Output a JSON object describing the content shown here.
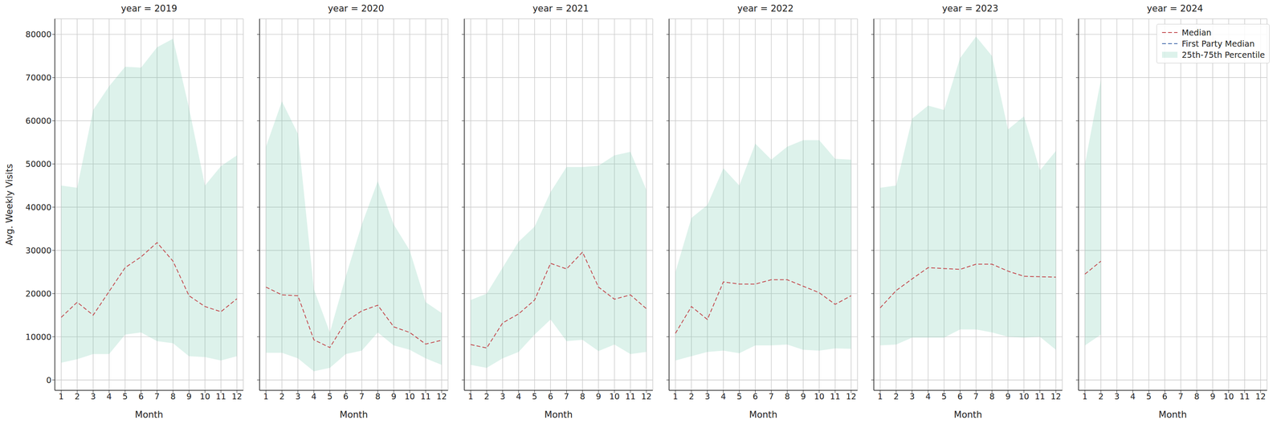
{
  "chart_data": [
    {
      "type": "line",
      "title": "year = 2019",
      "x_label": "Month",
      "y_label": "Avg. Weekly Visits",
      "x": [
        1,
        2,
        3,
        4,
        5,
        6,
        7,
        8,
        9,
        10,
        11,
        12
      ],
      "xlim": [
        0.6,
        12.4
      ],
      "xticks": [
        1,
        2,
        3,
        4,
        5,
        6,
        7,
        8,
        9,
        10,
        11,
        12
      ],
      "ylim": [
        -2400,
        83600
      ],
      "yticks": [
        0,
        10000,
        20000,
        30000,
        40000,
        50000,
        60000,
        70000,
        80000
      ],
      "grid": true,
      "series": [
        {
          "name": "Median",
          "type": "line",
          "color": "#c44e52",
          "line_style": "dashed",
          "values": [
            14500,
            18000,
            15000,
            20500,
            26000,
            28500,
            31800,
            27500,
            19500,
            17000,
            15800,
            18800
          ]
        },
        {
          "name": "First Party Median",
          "type": "line",
          "color": "#4c72b0",
          "line_style": "dashed",
          "values": [
            null,
            null,
            null,
            null,
            null,
            null,
            null,
            null,
            null,
            null,
            null,
            null
          ]
        },
        {
          "name": "25th-75th Percentile",
          "type": "area",
          "color": "#66c2a5",
          "low": [
            4000,
            4800,
            6000,
            6000,
            10500,
            11000,
            9000,
            8500,
            5500,
            5300,
            4500,
            5500
          ],
          "high": [
            45000,
            44500,
            62500,
            68000,
            72500,
            72300,
            77000,
            79000,
            63000,
            45000,
            49500,
            52000
          ]
        }
      ]
    },
    {
      "type": "line",
      "title": "year = 2020",
      "x_label": "Month",
      "tick_labels": "x",
      "x": [
        1,
        2,
        3,
        4,
        5,
        6,
        7,
        8,
        9,
        10,
        11,
        12
      ],
      "xlim": [
        0.6,
        12.4
      ],
      "xticks": [
        1,
        2,
        3,
        4,
        5,
        6,
        7,
        8,
        9,
        10,
        11,
        12
      ],
      "ylim": [
        -2400,
        83600
      ],
      "yticks": [
        0,
        10000,
        20000,
        30000,
        40000,
        50000,
        60000,
        70000,
        80000
      ],
      "grid": true,
      "series": [
        {
          "name": "Median",
          "type": "line",
          "color": "#c44e52",
          "line_style": "dashed",
          "values": [
            21500,
            19700,
            19500,
            9300,
            7500,
            13500,
            16000,
            17300,
            12300,
            11000,
            8300,
            9200
          ]
        },
        {
          "name": "First Party Median",
          "type": "line",
          "color": "#4c72b0",
          "line_style": "dashed",
          "values": [
            null,
            null,
            null,
            null,
            null,
            null,
            null,
            null,
            null,
            null,
            null,
            null
          ]
        },
        {
          "name": "25th-75th Percentile",
          "type": "area",
          "color": "#66c2a5",
          "low": [
            6300,
            6300,
            5000,
            2000,
            2800,
            6000,
            6800,
            11000,
            8000,
            7000,
            5000,
            3500
          ],
          "high": [
            54000,
            64500,
            57000,
            21000,
            11000,
            24000,
            36000,
            46000,
            36000,
            30000,
            18000,
            15500
          ]
        }
      ]
    },
    {
      "type": "line",
      "title": "year = 2021",
      "x_label": "Month",
      "tick_labels": "x",
      "x": [
        1,
        2,
        3,
        4,
        5,
        6,
        7,
        8,
        9,
        10,
        11,
        12
      ],
      "xlim": [
        0.6,
        12.4
      ],
      "xticks": [
        1,
        2,
        3,
        4,
        5,
        6,
        7,
        8,
        9,
        10,
        11,
        12
      ],
      "ylim": [
        -2400,
        83600
      ],
      "yticks": [
        0,
        10000,
        20000,
        30000,
        40000,
        50000,
        60000,
        70000,
        80000
      ],
      "grid": true,
      "series": [
        {
          "name": "Median",
          "type": "line",
          "color": "#c44e52",
          "line_style": "dashed",
          "values": [
            8200,
            7400,
            13200,
            15300,
            18500,
            27000,
            25700,
            29600,
            21500,
            18700,
            19700,
            16500
          ]
        },
        {
          "name": "First Party Median",
          "type": "line",
          "color": "#4c72b0",
          "line_style": "dashed",
          "values": [
            null,
            null,
            null,
            null,
            null,
            null,
            null,
            null,
            null,
            null,
            null,
            null
          ]
        },
        {
          "name": "25th-75th Percentile",
          "type": "area",
          "color": "#66c2a5",
          "low": [
            3500,
            2800,
            5000,
            6500,
            10500,
            14000,
            9000,
            9300,
            6700,
            8200,
            6000,
            6500
          ],
          "high": [
            18500,
            20000,
            26000,
            32000,
            35500,
            43500,
            49300,
            49300,
            49600,
            52000,
            52800,
            44000
          ]
        }
      ]
    },
    {
      "type": "line",
      "title": "year = 2022",
      "x_label": "Month",
      "tick_labels": "x",
      "x": [
        1,
        2,
        3,
        4,
        5,
        6,
        7,
        8,
        9,
        10,
        11,
        12
      ],
      "xlim": [
        0.6,
        12.4
      ],
      "xticks": [
        1,
        2,
        3,
        4,
        5,
        6,
        7,
        8,
        9,
        10,
        11,
        12
      ],
      "ylim": [
        -2400,
        83600
      ],
      "yticks": [
        0,
        10000,
        20000,
        30000,
        40000,
        50000,
        60000,
        70000,
        80000
      ],
      "grid": true,
      "series": [
        {
          "name": "Median",
          "type": "line",
          "color": "#c44e52",
          "line_style": "dashed",
          "values": [
            10800,
            17000,
            14000,
            22700,
            22200,
            22200,
            23200,
            23200,
            21700,
            20200,
            17500,
            19500
          ]
        },
        {
          "name": "First Party Median",
          "type": "line",
          "color": "#4c72b0",
          "line_style": "dashed",
          "values": [
            null,
            null,
            null,
            null,
            null,
            null,
            null,
            null,
            null,
            null,
            null,
            null
          ]
        },
        {
          "name": "25th-75th Percentile",
          "type": "area",
          "color": "#66c2a5",
          "low": [
            4500,
            5500,
            6500,
            6800,
            6200,
            8000,
            8000,
            8200,
            7000,
            6800,
            7300,
            7200
          ],
          "high": [
            25000,
            37500,
            40500,
            49000,
            45000,
            54700,
            51000,
            54000,
            55500,
            55500,
            51200,
            51000
          ]
        }
      ]
    },
    {
      "type": "line",
      "title": "year = 2023",
      "x_label": "Month",
      "tick_labels": "x",
      "x": [
        1,
        2,
        3,
        4,
        5,
        6,
        7,
        8,
        9,
        10,
        11,
        12
      ],
      "xlim": [
        0.6,
        12.4
      ],
      "xticks": [
        1,
        2,
        3,
        4,
        5,
        6,
        7,
        8,
        9,
        10,
        11,
        12
      ],
      "ylim": [
        -2400,
        83600
      ],
      "yticks": [
        0,
        10000,
        20000,
        30000,
        40000,
        50000,
        60000,
        70000,
        80000
      ],
      "grid": true,
      "series": [
        {
          "name": "Median",
          "type": "line",
          "color": "#c44e52",
          "line_style": "dashed",
          "values": [
            16700,
            20700,
            23400,
            26000,
            25800,
            25600,
            26800,
            26800,
            25200,
            24000,
            23900,
            23800
          ]
        },
        {
          "name": "First Party Median",
          "type": "line",
          "color": "#4c72b0",
          "line_style": "dashed",
          "values": [
            null,
            null,
            null,
            null,
            null,
            null,
            null,
            null,
            null,
            null,
            null,
            null
          ]
        },
        {
          "name": "25th-75th Percentile",
          "type": "area",
          "color": "#66c2a5",
          "low": [
            8000,
            8200,
            9800,
            9800,
            9800,
            11700,
            11700,
            11000,
            10000,
            9800,
            10000,
            7000
          ],
          "high": [
            44500,
            45000,
            60500,
            63500,
            62500,
            74500,
            79500,
            75000,
            58000,
            61000,
            48500,
            53000
          ]
        }
      ]
    },
    {
      "type": "line",
      "title": "year = 2024",
      "x_label": "Month",
      "tick_labels": "x",
      "legend": "upper right",
      "x": [
        1,
        2,
        3,
        4,
        5,
        6,
        7,
        8,
        9,
        10,
        11,
        12
      ],
      "xlim": [
        0.6,
        12.4
      ],
      "xticks": [
        1,
        2,
        3,
        4,
        5,
        6,
        7,
        8,
        9,
        10,
        11,
        12
      ],
      "ylim": [
        -2400,
        83600
      ],
      "yticks": [
        0,
        10000,
        20000,
        30000,
        40000,
        50000,
        60000,
        70000,
        80000
      ],
      "grid": true,
      "series": [
        {
          "name": "Median",
          "type": "line",
          "color": "#c44e52",
          "line_style": "dashed",
          "values": [
            24500,
            27500,
            null,
            null,
            null,
            null,
            null,
            null,
            null,
            null,
            null,
            null
          ]
        },
        {
          "name": "First Party Median",
          "type": "line",
          "color": "#4c72b0",
          "line_style": "dashed",
          "values": [
            null,
            null,
            null,
            null,
            null,
            null,
            null,
            null,
            null,
            null,
            null,
            null
          ]
        },
        {
          "name": "25th-75th Percentile",
          "type": "area",
          "color": "#66c2a5",
          "low": [
            8000,
            10500,
            null,
            null,
            null,
            null,
            null,
            null,
            null,
            null,
            null,
            null
          ],
          "high": [
            50000,
            69500,
            null,
            null,
            null,
            null,
            null,
            null,
            null,
            null,
            null,
            null
          ]
        }
      ]
    }
  ]
}
